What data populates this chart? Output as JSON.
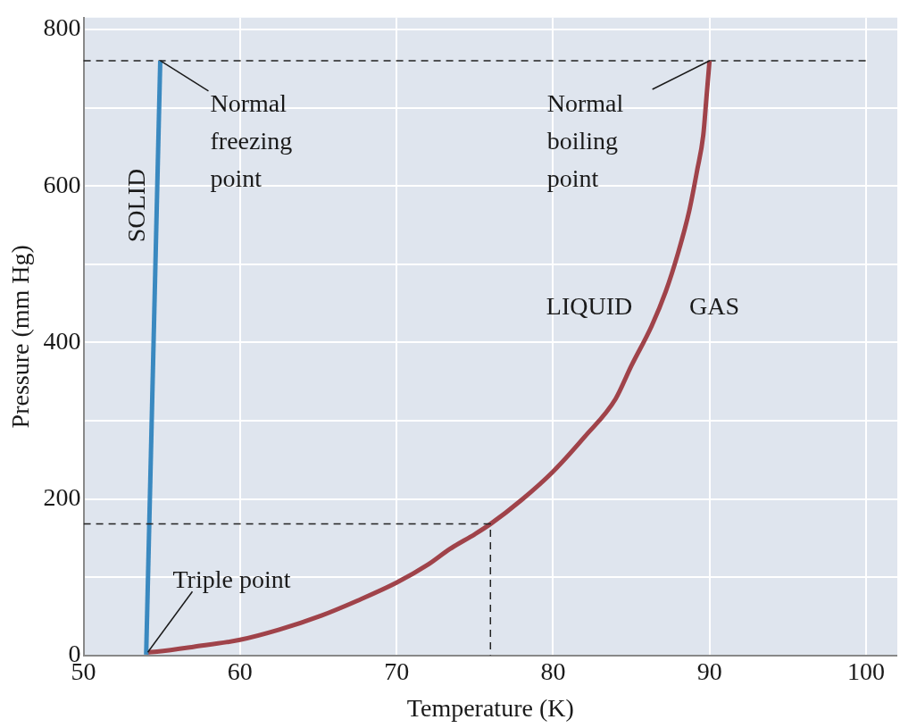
{
  "chart_data": {
    "type": "line",
    "xlabel": "Temperature (K)",
    "ylabel": "Pressure (mm Hg)",
    "xlim": [
      50,
      102
    ],
    "xticks": [
      50,
      60,
      70,
      80,
      90,
      100
    ],
    "ylim": [
      0,
      815
    ],
    "yticks": [
      0,
      {
        "value": 100,
        "label": null
      },
      200,
      {
        "value": 300,
        "label": null
      },
      400,
      {
        "value": 500,
        "label": null
      },
      600,
      {
        "value": 700,
        "label": null
      },
      800
    ],
    "grid": true,
    "marker": "none",
    "legend": false,
    "ref_lines": [
      {
        "axis": "y",
        "value": 760,
        "color": "#222222",
        "line_style": "dashed"
      }
    ],
    "series": [
      {
        "color": "#222222",
        "line_style": "dashed",
        "x": [
          50,
          76,
          76
        ],
        "values": [
          168,
          168,
          0
        ]
      },
      {
        "color": "#3a89c0",
        "line_style": "solid",
        "x": [
          54,
          54.9
        ],
        "values": [
          1,
          760
        ]
      },
      {
        "color": "#a0434a",
        "line_style": "solid",
        "x": [
          54.1,
          54.7,
          57,
          60,
          62.5,
          65.2,
          67.5,
          70,
          72,
          73.4,
          75,
          76,
          78,
          80,
          82,
          84,
          85,
          86.3,
          87.2,
          88,
          88.7,
          89.2,
          89.6,
          89.8,
          90
        ],
        "values": [
          4,
          5,
          11,
          20,
          33,
          51,
          70,
          93,
          116,
          136,
          155,
          168,
          199,
          235,
          279,
          328,
          370,
          421,
          465,
          515,
          568,
          619,
          665,
          712,
          760
        ]
      }
    ],
    "annotations": [
      {
        "text": "Normal\nfreezing\npoint",
        "x": 54.9,
        "y": 760
      },
      {
        "text": "Normal\nboiling\npoint",
        "x": 90,
        "y": 760
      },
      {
        "text": "Triple point",
        "x": 54.1,
        "y": 4
      },
      "SOLID",
      "LIQUID",
      "GAS"
    ]
  }
}
